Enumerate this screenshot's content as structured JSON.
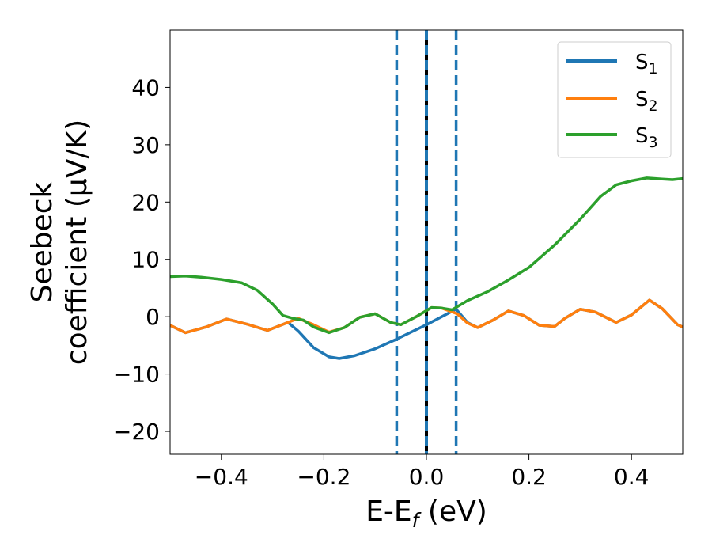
{
  "chart_data": {
    "type": "line",
    "xlabel": "E-E",
    "xlabel_subscript": "f",
    "xlabel_unit": " (eV)",
    "ylabel_line1": "Seebeck",
    "ylabel_line2": "coefficient  (μV/K)",
    "xlim": [
      -0.5,
      0.5
    ],
    "ylim": [
      -24,
      50
    ],
    "xticks": [
      -0.4,
      -0.2,
      0.0,
      0.2,
      0.4
    ],
    "xtick_labels": [
      "−0.4",
      "−0.2",
      "0.0",
      "0.2",
      "0.4"
    ],
    "yticks": [
      -20,
      -10,
      0,
      10,
      20,
      30,
      40
    ],
    "ytick_labels": [
      "−20",
      "−10",
      "0",
      "10",
      "20",
      "30",
      "40"
    ],
    "grid": false,
    "legend_position": "top-right",
    "vlines": [
      {
        "x": -0.058,
        "style": "dashed",
        "color": "#1f77b4"
      },
      {
        "x": 0.058,
        "style": "dashed",
        "color": "#1f77b4"
      },
      {
        "x": 0.0,
        "style": "black-with-blue-dash",
        "color": "#000000"
      }
    ],
    "series": [
      {
        "name": "S",
        "sub": "1",
        "color": "#1f77b4",
        "points": [
          [
            -0.5,
            -1.5
          ],
          [
            -0.47,
            -2.8
          ],
          [
            -0.43,
            -1.8
          ],
          [
            -0.39,
            -0.4
          ],
          [
            -0.35,
            -1.3
          ],
          [
            -0.31,
            -2.4
          ],
          [
            -0.27,
            -1.0
          ],
          [
            -0.25,
            -2.5
          ],
          [
            -0.22,
            -5.4
          ],
          [
            -0.19,
            -7.0
          ],
          [
            -0.17,
            -7.3
          ],
          [
            -0.14,
            -6.8
          ],
          [
            -0.1,
            -5.6
          ],
          [
            -0.06,
            -4.0
          ],
          [
            -0.03,
            -2.7
          ],
          [
            0.0,
            -1.4
          ],
          [
            0.03,
            0.0
          ],
          [
            0.058,
            1.3
          ],
          [
            0.08,
            -1.0
          ],
          [
            0.1,
            -1.9
          ],
          [
            0.13,
            -0.6
          ],
          [
            0.16,
            1.0
          ],
          [
            0.19,
            0.2
          ],
          [
            0.22,
            -1.5
          ],
          [
            0.25,
            -1.7
          ],
          [
            0.27,
            -0.3
          ],
          [
            0.3,
            1.3
          ],
          [
            0.33,
            0.8
          ],
          [
            0.37,
            -1.0
          ],
          [
            0.4,
            0.3
          ],
          [
            0.435,
            2.9
          ],
          [
            0.46,
            1.4
          ],
          [
            0.49,
            -1.4
          ],
          [
            0.5,
            -1.8
          ]
        ]
      },
      {
        "name": "S",
        "sub": "2",
        "color": "#ff7f0e",
        "points": [
          [
            -0.5,
            -1.5
          ],
          [
            -0.47,
            -2.8
          ],
          [
            -0.43,
            -1.8
          ],
          [
            -0.39,
            -0.4
          ],
          [
            -0.35,
            -1.3
          ],
          [
            -0.31,
            -2.4
          ],
          [
            -0.27,
            -1.0
          ],
          [
            -0.25,
            -0.3
          ],
          [
            -0.22,
            -1.4
          ],
          [
            -0.19,
            -2.7
          ],
          [
            -0.16,
            -1.9
          ],
          [
            -0.13,
            -0.1
          ],
          [
            -0.1,
            0.5
          ],
          [
            -0.07,
            -1.0
          ],
          [
            -0.05,
            -1.4
          ],
          [
            -0.02,
            0.0
          ],
          [
            0.01,
            1.6
          ],
          [
            0.03,
            1.5
          ],
          [
            0.06,
            0.5
          ],
          [
            0.08,
            -1.1
          ],
          [
            0.1,
            -1.9
          ],
          [
            0.13,
            -0.6
          ],
          [
            0.16,
            1.0
          ],
          [
            0.19,
            0.2
          ],
          [
            0.22,
            -1.5
          ],
          [
            0.25,
            -1.7
          ],
          [
            0.27,
            -0.3
          ],
          [
            0.3,
            1.3
          ],
          [
            0.33,
            0.8
          ],
          [
            0.37,
            -1.0
          ],
          [
            0.4,
            0.3
          ],
          [
            0.435,
            2.9
          ],
          [
            0.46,
            1.4
          ],
          [
            0.49,
            -1.4
          ],
          [
            0.5,
            -1.8
          ]
        ]
      },
      {
        "name": "S",
        "sub": "3",
        "color": "#2ca02c",
        "points": [
          [
            -0.5,
            7.0
          ],
          [
            -0.47,
            7.1
          ],
          [
            -0.44,
            6.9
          ],
          [
            -0.4,
            6.5
          ],
          [
            -0.36,
            5.9
          ],
          [
            -0.33,
            4.6
          ],
          [
            -0.3,
            2.2
          ],
          [
            -0.28,
            0.2
          ],
          [
            -0.26,
            -0.3
          ],
          [
            -0.24,
            -0.6
          ],
          [
            -0.22,
            -1.8
          ],
          [
            -0.19,
            -2.8
          ],
          [
            -0.16,
            -1.9
          ],
          [
            -0.13,
            -0.1
          ],
          [
            -0.1,
            0.5
          ],
          [
            -0.07,
            -1.0
          ],
          [
            -0.05,
            -1.4
          ],
          [
            -0.02,
            0.0
          ],
          [
            0.01,
            1.6
          ],
          [
            0.03,
            1.5
          ],
          [
            0.05,
            1.2
          ],
          [
            0.08,
            2.8
          ],
          [
            0.12,
            4.4
          ],
          [
            0.16,
            6.4
          ],
          [
            0.2,
            8.6
          ],
          [
            0.25,
            12.5
          ],
          [
            0.3,
            17.0
          ],
          [
            0.34,
            21.0
          ],
          [
            0.37,
            23.0
          ],
          [
            0.4,
            23.7
          ],
          [
            0.43,
            24.2
          ],
          [
            0.46,
            24.0
          ],
          [
            0.48,
            23.9
          ],
          [
            0.5,
            24.1
          ]
        ]
      }
    ]
  }
}
